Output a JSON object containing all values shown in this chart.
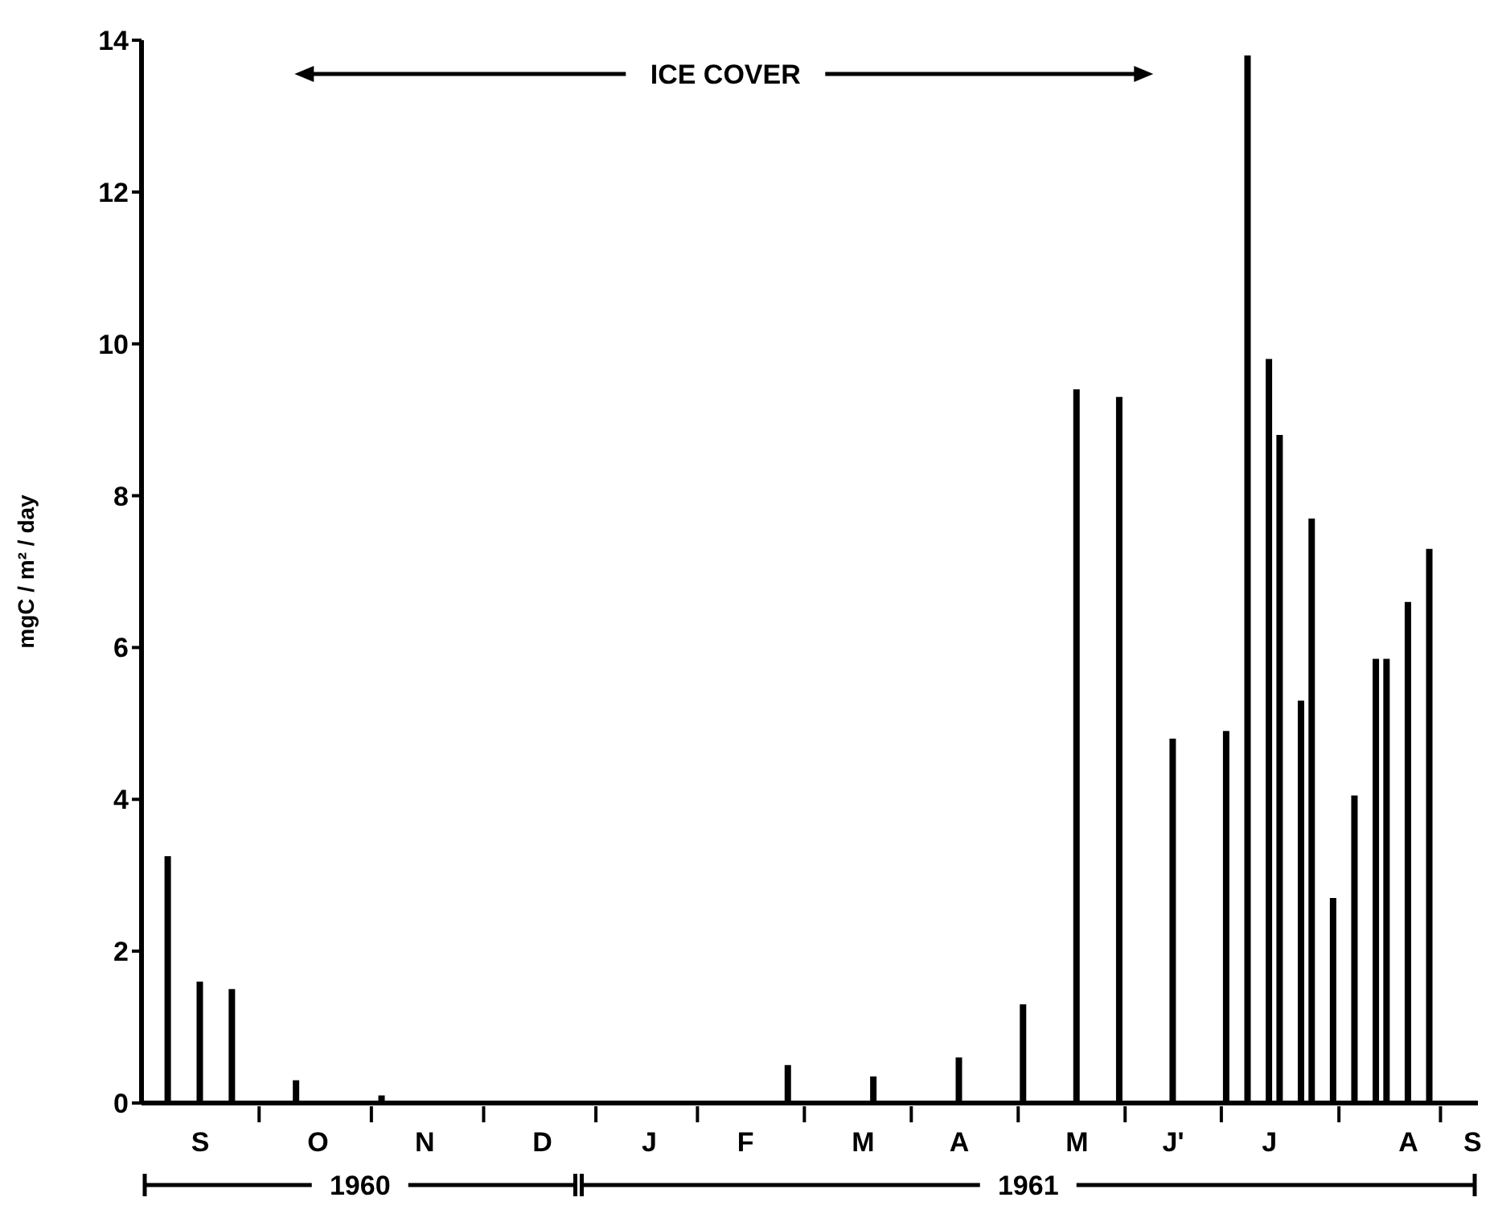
{
  "chart_data": {
    "type": "bar",
    "ylabel": "mgC / m² / day",
    "categories": [
      null,
      null,
      null,
      null,
      null,
      "S",
      null,
      null,
      null,
      null,
      null,
      null,
      null,
      null,
      null,
      null,
      "O",
      null,
      null,
      null,
      null,
      null,
      null,
      null,
      null,
      null,
      "N",
      null,
      null,
      null,
      null,
      null,
      null,
      null,
      null,
      null,
      null,
      "D",
      null,
      null,
      null,
      null,
      null,
      null,
      null,
      null,
      null,
      "J",
      null,
      null,
      null,
      null,
      null,
      null,
      null,
      null,
      "F",
      null,
      null,
      null,
      null,
      null,
      null,
      null,
      null,
      null,
      null,
      "M",
      null,
      null,
      null,
      null,
      null,
      null,
      null,
      null,
      "A",
      null,
      null,
      null,
      null,
      null,
      null,
      null,
      null,
      null,
      null,
      "M",
      null,
      null,
      null,
      null,
      null,
      null,
      null,
      null,
      "J'",
      null,
      null,
      null,
      null,
      null,
      null,
      null,
      null,
      "J",
      null,
      null,
      null,
      null,
      null,
      null,
      null,
      null,
      null,
      null,
      null,
      null,
      "A",
      null,
      null,
      null,
      null,
      null,
      "S"
    ],
    "series": [
      {
        "color": "#000000",
        "values": [
          null,
          null,
          3.25,
          null,
          null,
          1.6,
          null,
          null,
          1.5,
          null,
          null,
          null,
          null,
          null,
          0.3,
          null,
          null,
          null,
          null,
          null,
          null,
          null,
          0.1,
          null,
          null,
          null,
          null,
          null,
          null,
          null,
          null,
          null,
          null,
          null,
          null,
          null,
          null,
          null,
          null,
          null,
          null,
          null,
          null,
          null,
          null,
          null,
          null,
          null,
          null,
          null,
          null,
          null,
          null,
          null,
          null,
          null,
          null,
          null,
          null,
          null,
          0.5,
          null,
          null,
          null,
          null,
          null,
          null,
          null,
          0.35,
          null,
          null,
          null,
          null,
          null,
          null,
          null,
          0.6,
          null,
          null,
          null,
          null,
          null,
          1.3,
          null,
          null,
          null,
          null,
          9.4,
          null,
          null,
          null,
          9.3,
          null,
          null,
          null,
          null,
          4.8,
          null,
          null,
          null,
          null,
          4.9,
          null,
          13.8,
          null,
          9.8,
          8.8,
          null,
          5.3,
          7.7,
          null,
          2.7,
          null,
          4.05,
          null,
          5.85,
          5.85,
          null,
          6.6,
          null,
          7.3,
          null,
          null,
          null,
          null
        ]
      }
    ],
    "ylim": [
      0,
      14
    ],
    "yticks": [
      0,
      2,
      4,
      6,
      8,
      10,
      12,
      14
    ],
    "annotations": [
      "ICE COVER",
      "1960",
      "1961"
    ]
  }
}
